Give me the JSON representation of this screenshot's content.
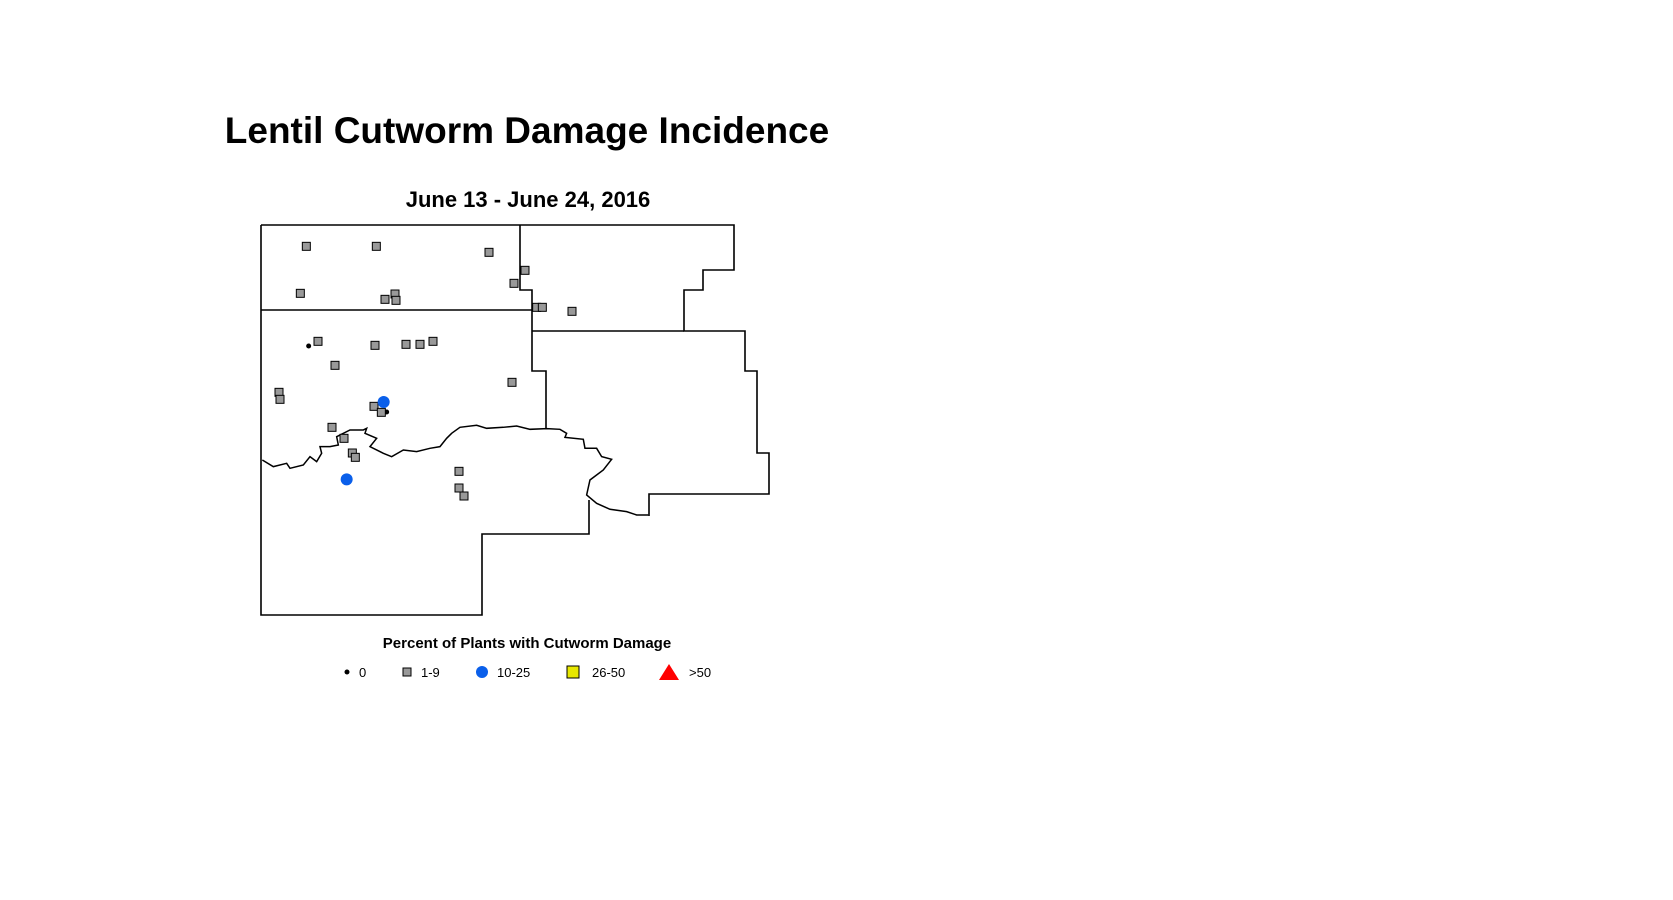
{
  "title": "Lentil Cutworm Damage Incidence",
  "subtitle": "June 13 - June 24, 2016",
  "legend": {
    "title": "Percent of Plants with Cutworm Damage",
    "classes": [
      {
        "label": "0",
        "symbol": "dot",
        "color": "#000000"
      },
      {
        "label": "1-9",
        "symbol": "square",
        "color": "#999999"
      },
      {
        "label": "10-25",
        "symbol": "circle",
        "color": "#0A5FEA"
      },
      {
        "label": "26-50",
        "symbol": "square",
        "color": "#E8E800"
      },
      {
        "label": ">50",
        "symbol": "triangle",
        "color": "#FF0000"
      }
    ]
  }
}
